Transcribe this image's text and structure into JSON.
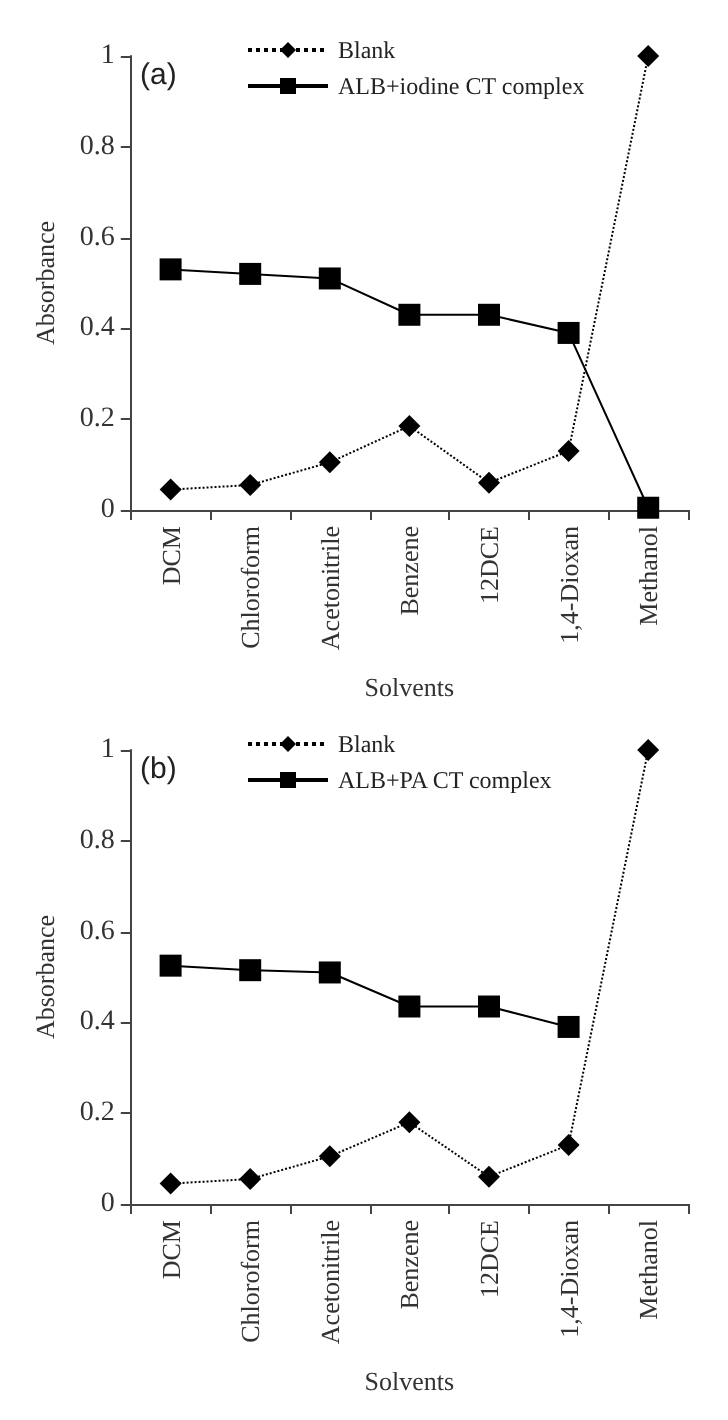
{
  "chart_data": [
    {
      "type": "line",
      "annotations": [
        "(a)"
      ],
      "xlabel": "Solvents",
      "ylabel": "Absorbance",
      "categories": [
        "DCM",
        "Chloroform",
        "Acetonitrile",
        "Benzene",
        "12DCE",
        "1,4-Dioxan",
        "Methanol"
      ],
      "series": [
        {
          "name": "Blank",
          "color": "#000000",
          "marker": "diamond",
          "line_style": "dotted",
          "values": [
            0.045,
            0.055,
            0.105,
            0.185,
            0.06,
            0.13,
            1
          ]
        },
        {
          "name": "ALB+iodine CT complex",
          "color": "#000000",
          "marker": "square",
          "line_style": "solid",
          "values": [
            0.53,
            0.52,
            0.51,
            0.43,
            0.43,
            0.39,
            0.005
          ]
        }
      ],
      "ylim": [
        0,
        1
      ],
      "yticks": [
        0,
        0.2,
        0.4,
        0.6,
        0.8,
        1
      ],
      "grid": false,
      "legend": "top"
    },
    {
      "type": "line",
      "annotations": [
        "(b)"
      ],
      "xlabel": "Solvents",
      "ylabel": "Absorbance",
      "categories": [
        "DCM",
        "Chloroform",
        "Acetonitrile",
        "Benzene",
        "12DCE",
        "1,4-Dioxan",
        "Methanol"
      ],
      "series": [
        {
          "name": "Blank",
          "color": "#000000",
          "marker": "diamond",
          "line_style": "dotted",
          "values": [
            0.045,
            0.055,
            0.105,
            0.18,
            0.06,
            0.13,
            1
          ]
        },
        {
          "name": "ALB+PA CT complex",
          "color": "#000000",
          "marker": "square",
          "line_style": "solid",
          "values": [
            0.525,
            0.515,
            0.51,
            0.435,
            0.435,
            0.39,
            null
          ]
        }
      ],
      "ylim": [
        0,
        1
      ],
      "yticks": [
        0,
        0.2,
        0.4,
        0.6,
        0.8,
        1
      ],
      "grid": false,
      "legend": "top"
    }
  ]
}
